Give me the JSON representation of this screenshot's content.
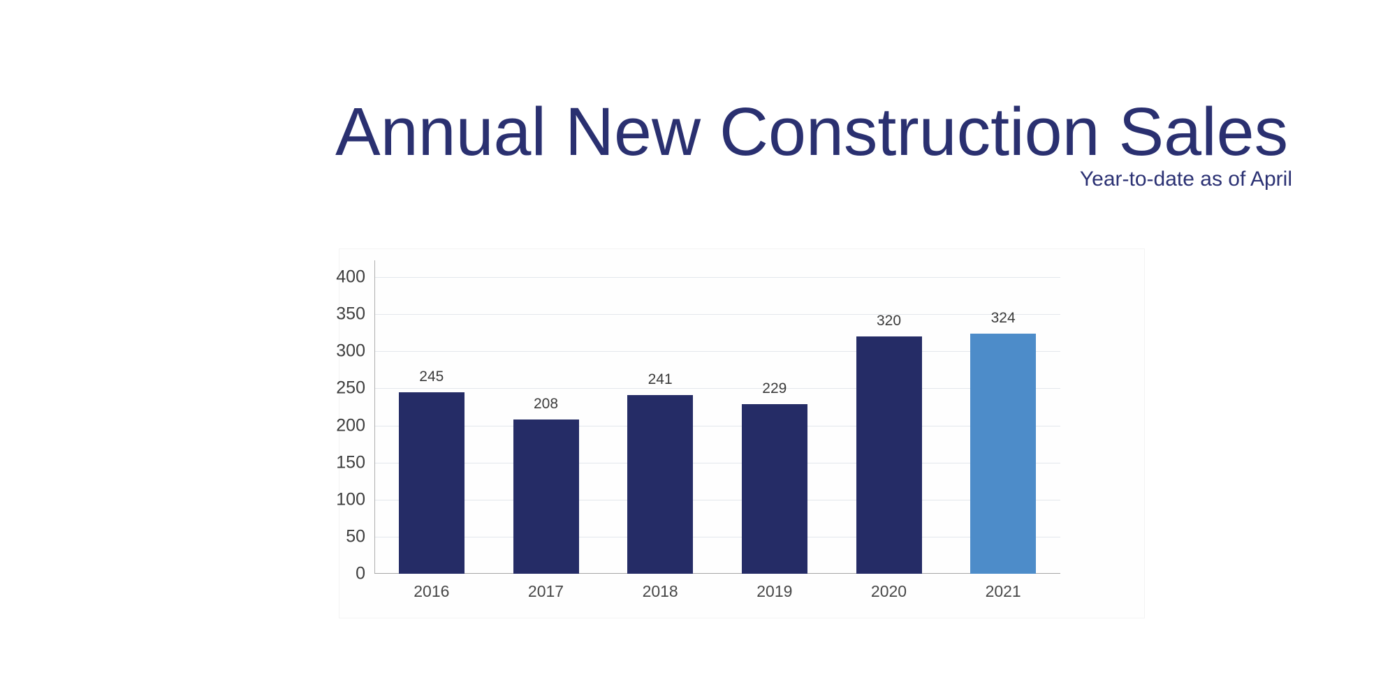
{
  "page": {
    "background_color": "#ffffff"
  },
  "header": {
    "title": "Annual New Construction Sales",
    "subtitle": "Year-to-date as of April",
    "title_color": "#2a3070",
    "subtitle_color": "#2b3173"
  },
  "chart_data": {
    "type": "bar",
    "title": "Annual New Construction Sales",
    "subtitle": "Year-to-date as of April",
    "categories": [
      "2016",
      "2017",
      "2018",
      "2019",
      "2020",
      "2021"
    ],
    "values": [
      245,
      208,
      241,
      229,
      320,
      324
    ],
    "y_ticks": [
      0,
      50,
      100,
      150,
      200,
      250,
      300,
      350,
      400
    ],
    "ylim": [
      0,
      400
    ],
    "xlabel": "",
    "ylabel": "",
    "grid": true,
    "legend": "none",
    "value_labels_shown": true,
    "highlight_category": "2021",
    "bar_colors": [
      "#252c66",
      "#252c66",
      "#252c66",
      "#252c66",
      "#252c66",
      "#4d8cc9"
    ],
    "colors": {
      "bar_default": "#252c66",
      "bar_highlight": "#4d8cc9",
      "grid": "#e3e7ec",
      "axis": "#aeaeae",
      "y_tick_label": "#3e3e3e",
      "x_tick_label": "#474747",
      "value_label": "#3a3a3a"
    }
  }
}
